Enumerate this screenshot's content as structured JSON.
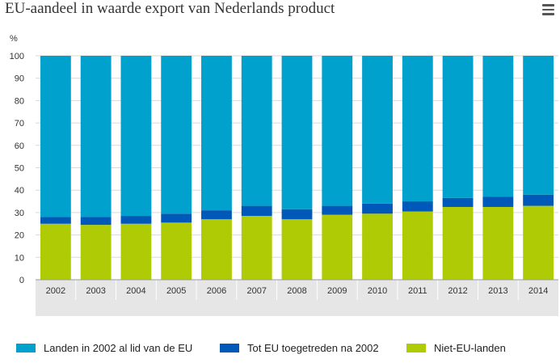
{
  "page": {
    "title": "EU-aandeel in waarde export van Nederlands product",
    "menu_icon": "hamburger-menu-icon"
  },
  "colors": {
    "eu2002": "#00a1cd",
    "toegetreden": "#0058b8",
    "niet_eu": "#afcb05",
    "grid": "#d9d9d9",
    "category_band": "#e6e6e6"
  },
  "chart_data": {
    "type": "bar",
    "stacked": true,
    "ylabel": "%",
    "ylim": [
      0,
      100
    ],
    "yticks": [
      0,
      10,
      20,
      30,
      40,
      50,
      60,
      70,
      80,
      90,
      100
    ],
    "categories": [
      "2002",
      "2003",
      "2004",
      "2005",
      "2006",
      "2007",
      "2008",
      "2009",
      "2010",
      "2011",
      "2012",
      "2013",
      "2014"
    ],
    "series": [
      {
        "name": "Niet-EU-landen",
        "values": [
          25,
          24.5,
          25,
          25.5,
          27,
          28.5,
          27,
          29,
          29.5,
          30.5,
          32.5,
          32.5,
          33
        ]
      },
      {
        "name": "Tot EU toegetreden na 2002",
        "values": [
          3,
          3.5,
          3.5,
          4,
          4,
          4.5,
          4.5,
          4,
          4.5,
          4.5,
          4,
          4.5,
          5
        ]
      },
      {
        "name": "Landen in 2002 al lid van de EU",
        "values": [
          72,
          72,
          71.5,
          70.5,
          69,
          67,
          68.5,
          67,
          66,
          65,
          63.5,
          63,
          62
        ]
      }
    ],
    "grid": true,
    "legend_position": "bottom"
  },
  "legend": [
    {
      "label": "Landen in 2002 al lid van de EU",
      "color_key": "eu2002"
    },
    {
      "label": "Tot EU toegetreden na 2002",
      "color_key": "toegetreden"
    },
    {
      "label": "Niet-EU-landen",
      "color_key": "niet_eu"
    }
  ]
}
